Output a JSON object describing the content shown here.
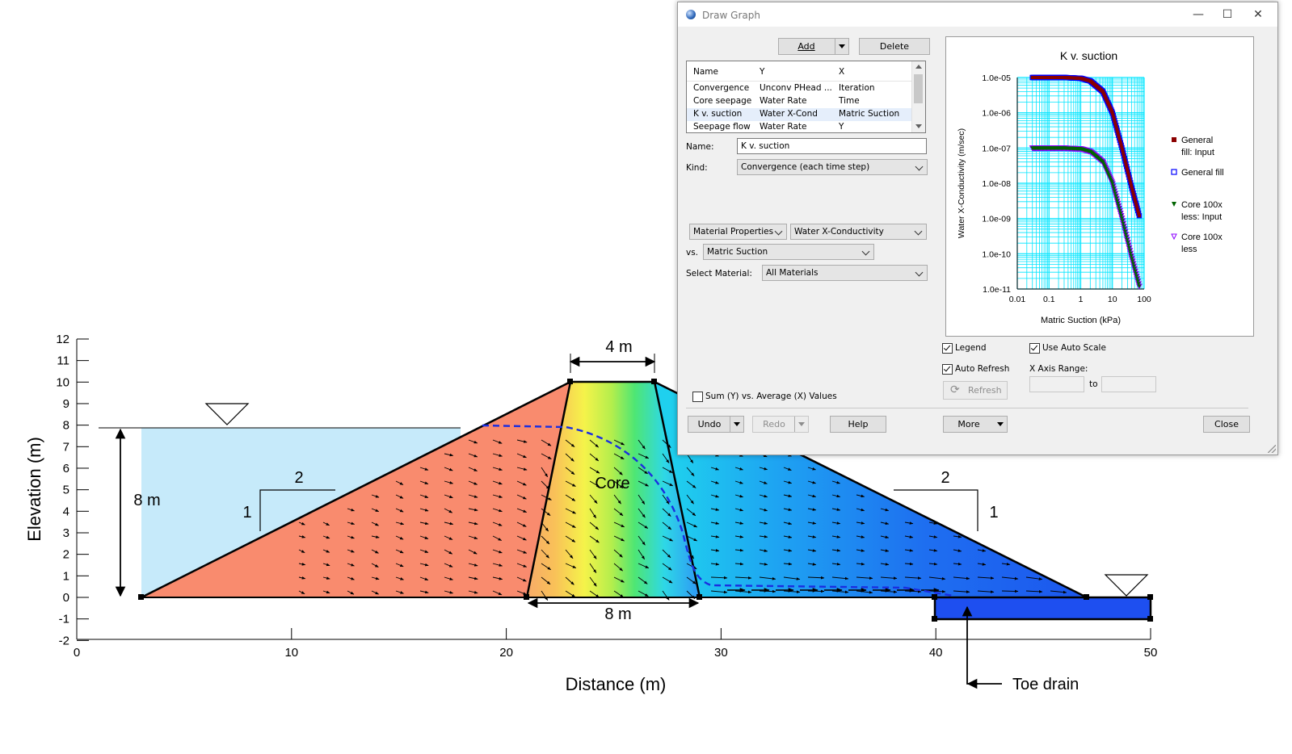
{
  "figure": {
    "y_axis_label": "Elevation (m)",
    "x_axis_label": "Distance (m)",
    "y_ticks": [
      "12",
      "11",
      "10",
      "9",
      "8",
      "7",
      "6",
      "5",
      "4",
      "3",
      "2",
      "1",
      "0",
      "-1",
      "-2"
    ],
    "x_ticks": [
      "0",
      "10",
      "20",
      "30",
      "40",
      "50"
    ],
    "crest_width_label": "4 m",
    "base_width_label": "8 m",
    "water_depth_label": "8 m",
    "core_label": "Core",
    "upstream_slope_h": "2",
    "upstream_slope_v": "1",
    "downstream_slope_h": "2",
    "downstream_slope_v": "1",
    "toe_drain_label": "Toe drain"
  },
  "dialog": {
    "title": "Draw Graph",
    "add_label": "Add",
    "delete_label": "Delete",
    "list": {
      "headers": {
        "name": "Name",
        "y": "Y",
        "x": "X"
      },
      "rows": [
        {
          "name": "Convergence",
          "y": "Unconv PHead ...",
          "x": "Iteration"
        },
        {
          "name": "Core seepage",
          "y": "Water Rate",
          "x": "Time"
        },
        {
          "name": "K v. suction",
          "y": "Water X-Cond",
          "x": "Matric Suction"
        },
        {
          "name": "Seepage flow",
          "y": "Water Rate",
          "x": "Y"
        }
      ]
    },
    "name_label": "Name:",
    "name_value": "K v. suction",
    "kind_label": "Kind:",
    "kind_value": "Convergence (each time step)",
    "category_value": "Material Properties",
    "property_value": "Water X-Conductivity",
    "vs_label": "vs.",
    "vs_value": "Matric Suction",
    "select_material_label": "Select Material:",
    "select_material_value": "All Materials",
    "sum_label": "Sum (Y) vs. Average (X) Values",
    "legend_label": "Legend",
    "use_auto_scale_label": "Use Auto Scale",
    "auto_refresh_label": "Auto Refresh",
    "x_axis_range_label": "X Axis Range:",
    "to_label": "to",
    "refresh_label": "Refresh",
    "undo_label": "Undo",
    "redo_label": "Redo",
    "help_label": "Help",
    "more_label": "More",
    "close_label": "Close"
  },
  "chart_data": {
    "type": "scatter",
    "title": "K v. suction",
    "xlabel": "Matric Suction (kPa)",
    "ylabel": "Water X-Conductivity (m/sec)",
    "x_scale": "log",
    "y_scale": "log",
    "xlim": [
      0.01,
      100
    ],
    "ylim": [
      1e-11,
      1e-05
    ],
    "x_tick_labels": [
      "0.01",
      "0.1",
      "1",
      "10",
      "100"
    ],
    "y_tick_labels": [
      "1.0e-05",
      "1.0e-06",
      "1.0e-07",
      "1.0e-08",
      "1.0e-09",
      "1.0e-10",
      "1.0e-11"
    ],
    "grid": true,
    "legend_position": "right",
    "series": [
      {
        "name": "General fill: Input",
        "color": "#8b0000",
        "marker": "square",
        "x": [
          0.03,
          0.1,
          0.3,
          1,
          2,
          5,
          10,
          20,
          40,
          70
        ],
        "y": [
          1e-05,
          1e-05,
          1e-05,
          9.5e-06,
          8e-06,
          4e-06,
          1e-06,
          1e-07,
          8e-09,
          1.2e-09
        ]
      },
      {
        "name": "General fill",
        "color": "#0000ff",
        "marker": "hollow-square",
        "x": [
          0.03,
          0.1,
          0.3,
          1,
          2,
          5,
          10,
          20,
          40,
          70
        ],
        "y": [
          1e-05,
          1e-05,
          1e-05,
          9.5e-06,
          8e-06,
          4e-06,
          1e-06,
          1e-07,
          8e-09,
          1.2e-09
        ]
      },
      {
        "name": "Core 100x less: Input",
        "color": "#006400",
        "marker": "triangle-down",
        "x": [
          0.03,
          0.1,
          0.3,
          1,
          2,
          5,
          10,
          20,
          40,
          70
        ],
        "y": [
          1e-07,
          1e-07,
          1e-07,
          9.5e-08,
          8e-08,
          4e-08,
          1e-08,
          1e-09,
          8e-11,
          1.2e-11
        ]
      },
      {
        "name": "Core 100x less",
        "color": "#8b00ff",
        "marker": "hollow-triangle-down",
        "x": [
          0.03,
          0.1,
          0.3,
          1,
          2,
          5,
          10,
          20,
          40,
          70
        ],
        "y": [
          1e-07,
          1e-07,
          1e-07,
          9.5e-08,
          8e-08,
          4e-08,
          1e-08,
          1e-09,
          8e-11,
          1.2e-11
        ]
      }
    ]
  }
}
